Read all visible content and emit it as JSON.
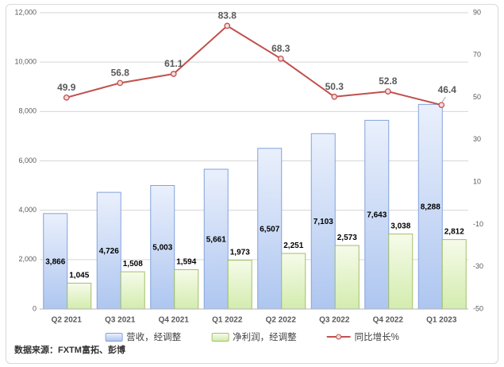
{
  "chart_data": {
    "type": "combo",
    "title": "",
    "categories": [
      "Q2 2021",
      "Q3 2021",
      "Q4 2021",
      "Q1 2022",
      "Q2 2022",
      "Q3 2022",
      "Q4 2022",
      "Q1 2023"
    ],
    "series": [
      {
        "sem": "revenue",
        "name": "营收，经调整",
        "type": "bar",
        "axis": "left",
        "values": [
          3866,
          4726,
          5003,
          5661,
          6507,
          7103,
          7643,
          8288
        ],
        "fill_top": "#eaf0fc",
        "fill_bottom": "#aec6f0",
        "border": "#84a2da",
        "label_color": "#000000",
        "label_position": "inside-center"
      },
      {
        "sem": "net-profit",
        "name": "净利润，经调整",
        "type": "bar",
        "axis": "left",
        "values": [
          1045,
          1508,
          1594,
          1973,
          2251,
          2573,
          3038,
          2812
        ],
        "fill_top": "#f6fbea",
        "fill_bottom": "#d3ecae",
        "border": "#a3c06a",
        "label_color": "#000000",
        "label_position": "outside-end"
      },
      {
        "sem": "growth",
        "name": "同比增长%",
        "type": "line",
        "axis": "right",
        "values": [
          49.9,
          56.8,
          61.1,
          83.8,
          68.3,
          50.3,
          52.8,
          46.4
        ],
        "color": "#c0504d",
        "marker_fill": "#f2dddc",
        "label_color": "#595959",
        "label_offsets": {
          "7": [
            7,
            -15
          ]
        }
      }
    ],
    "left_axis": {
      "min": 0,
      "max": 12000,
      "step": 2000,
      "labels": [
        "0",
        "2,000",
        "4,000",
        "6,000",
        "8,000",
        "10,000",
        "12,000"
      ]
    },
    "right_axis": {
      "min": -50,
      "max": 90,
      "step": 20,
      "labels": [
        "-50",
        "-30",
        "-10",
        "10",
        "30",
        "50",
        "70",
        "90"
      ]
    },
    "gridlines": true,
    "legend_position": "bottom",
    "source_note": "数据来源：FXTM富拓、彭博",
    "colors": {
      "gridline": "#d6d6d6",
      "axis_line": "#b3b3b3",
      "tick_label": "#595959",
      "category_label": "#595959",
      "leader_line": "#a6a6a6"
    }
  }
}
